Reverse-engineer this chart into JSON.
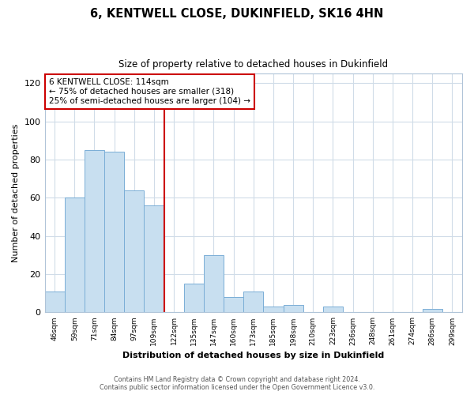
{
  "title": "6, KENTWELL CLOSE, DUKINFIELD, SK16 4HN",
  "subtitle": "Size of property relative to detached houses in Dukinfield",
  "xlabel": "Distribution of detached houses by size in Dukinfield",
  "ylabel": "Number of detached properties",
  "bin_labels": [
    "46sqm",
    "59sqm",
    "71sqm",
    "84sqm",
    "97sqm",
    "109sqm",
    "122sqm",
    "135sqm",
    "147sqm",
    "160sqm",
    "173sqm",
    "185sqm",
    "198sqm",
    "210sqm",
    "223sqm",
    "236sqm",
    "248sqm",
    "261sqm",
    "274sqm",
    "286sqm",
    "299sqm"
  ],
  "bar_heights": [
    11,
    60,
    85,
    84,
    64,
    56,
    0,
    15,
    30,
    8,
    11,
    3,
    4,
    0,
    3,
    0,
    0,
    0,
    0,
    2,
    0
  ],
  "bar_color": "#c8dff0",
  "bar_edge_color": "#7aaed6",
  "vline_color": "#cc0000",
  "annotation_text": "6 KENTWELL CLOSE: 114sqm\n← 75% of detached houses are smaller (318)\n25% of semi-detached houses are larger (104) →",
  "annotation_box_color": "#ffffff",
  "annotation_box_edge": "#cc0000",
  "ylim": [
    0,
    125
  ],
  "yticks": [
    0,
    20,
    40,
    60,
    80,
    100,
    120
  ],
  "footer_line1": "Contains HM Land Registry data © Crown copyright and database right 2024.",
  "footer_line2": "Contains public sector information licensed under the Open Government Licence v3.0.",
  "bg_color": "#ffffff",
  "grid_color": "#d0dce8"
}
